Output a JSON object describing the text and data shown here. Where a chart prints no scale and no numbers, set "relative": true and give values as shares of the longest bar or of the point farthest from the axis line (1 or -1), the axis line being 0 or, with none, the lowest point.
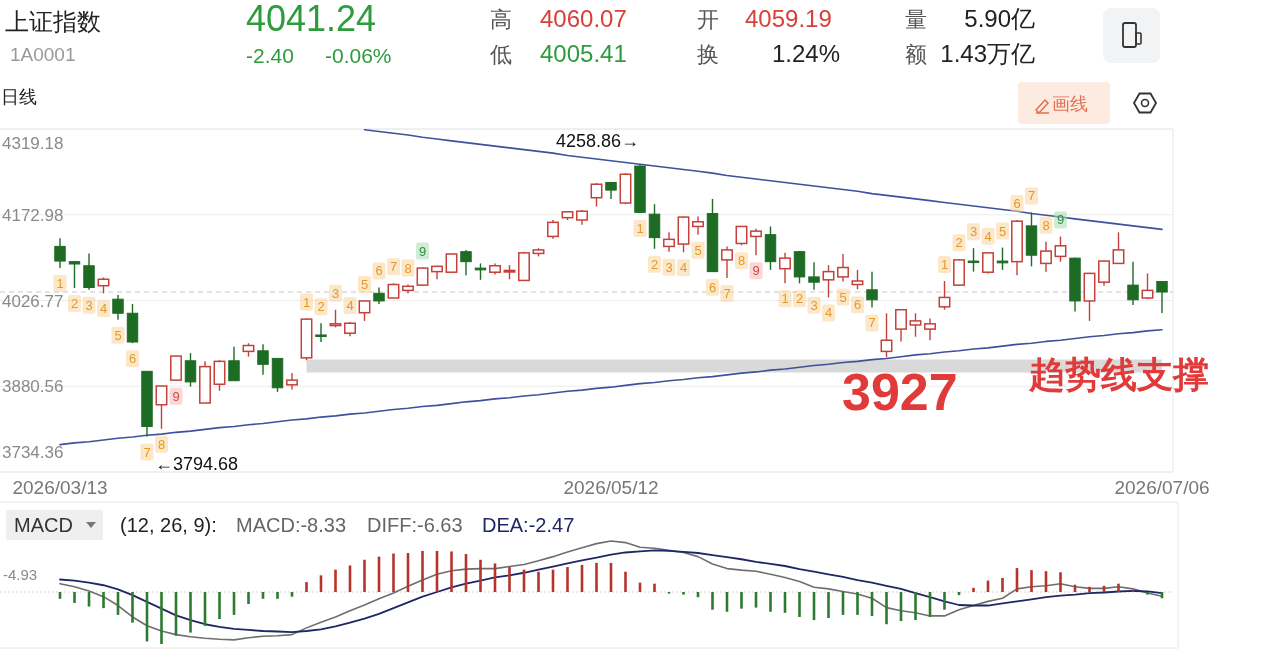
{
  "chart_data": [
    {
      "type": "candlestick",
      "title": "上证指数",
      "subtitle": "1A0001",
      "annotations": [
        "4041.24",
        "-2.40",
        "-0.06%",
        "高",
        "4060.07",
        "低",
        "4005.41",
        "开",
        "4059.19",
        "换",
        "1.24%",
        "量",
        "5.90亿",
        "额",
        "1.43万亿",
        "日线",
        "画线",
        "3927",
        {
          "text": "4258.86→",
          "y": 4258.86
        },
        "←3794.68"
      ],
      "categories": [
        "2026/03/13",
        null,
        null,
        null,
        null,
        null,
        null,
        null,
        null,
        null,
        null,
        null,
        null,
        null,
        null,
        null,
        null,
        null,
        null,
        null,
        null,
        null,
        null,
        null,
        null,
        null,
        null,
        null,
        null,
        null,
        null,
        null,
        null,
        null,
        null,
        null,
        null,
        null,
        "2026/05/12",
        null,
        null,
        null,
        null,
        null,
        null,
        null,
        null,
        null,
        null,
        null,
        null,
        null,
        null,
        null,
        null,
        null,
        null,
        null,
        null,
        null,
        null,
        null,
        null,
        null,
        null,
        null,
        null,
        null,
        null,
        null,
        null,
        null,
        null,
        null,
        null,
        null,
        "2026/07/06"
      ],
      "ylim": [
        3734.36,
        4319.18
      ],
      "yticks": [
        4319.18,
        4172.98,
        4026.77,
        3880.56,
        3734.36
      ],
      "grid": "y",
      "ref_lines": [
        {
          "axis": "y",
          "value": 4041.24,
          "color": "#c8c8c8",
          "line_style": "dashed"
        }
      ],
      "series": [
        {
          "type": "line",
          "color": "#d9d9d9",
          "values": [
            null,
            null,
            null,
            null,
            null,
            null,
            null,
            null,
            null,
            null,
            null,
            null,
            null,
            null,
            null,
            null,
            null,
            3915,
            3915,
            3915,
            3915,
            3915,
            3915,
            3915,
            3915,
            3915,
            3915,
            3915,
            3915,
            3915,
            3915,
            3915,
            3915,
            3915,
            3915,
            3915,
            3915,
            3915,
            3915,
            3915,
            3915,
            3915,
            3915,
            3915,
            3915,
            3915,
            3915,
            3915,
            3915,
            3915,
            3915,
            3915,
            3915,
            3915,
            3915,
            3915,
            3915,
            3915,
            3915,
            3915,
            3915,
            3915,
            3915,
            3915,
            3915,
            3915,
            3915,
            3915,
            3915,
            3915,
            3915,
            3915,
            3915,
            3915,
            3915,
            3915,
            3915
          ]
        },
        {
          "type": "line",
          "color": "#3d519c",
          "values": [
            null,
            null,
            null,
            null,
            null,
            null,
            null,
            null,
            null,
            null,
            null,
            null,
            null,
            null,
            null,
            null,
            null,
            null,
            null,
            null,
            null,
            4318,
            4315,
            4312,
            4309,
            4305,
            4302,
            4299,
            4296,
            4293,
            4290,
            4287,
            4284,
            4281,
            4278,
            4274,
            4271,
            4268,
            4265,
            4262,
            4259,
            4256,
            4253,
            4250,
            4247,
            4244,
            4240,
            4237,
            4234,
            4231,
            4228,
            4225,
            4222,
            4219,
            4216,
            4213,
            4209,
            4206,
            4203,
            4200,
            4197,
            4194,
            4191,
            4188,
            4185,
            4182,
            4179,
            4175,
            4172,
            4169,
            4166,
            4163,
            4160,
            4157,
            4154,
            4151,
            4148
          ]
        },
        {
          "type": "line",
          "name": "趋势线支撑",
          "color": "#3d519c",
          "values": [
            3781,
            3784,
            3786,
            3789,
            3792,
            3794,
            3797,
            3799,
            3802,
            3804,
            3807,
            3810,
            3812,
            3815,
            3817,
            3820,
            3823,
            3825,
            3828,
            3830,
            3833,
            3835,
            3838,
            3841,
            3843,
            3846,
            3848,
            3851,
            3854,
            3856,
            3859,
            3861,
            3864,
            3866,
            3869,
            3872,
            3874,
            3877,
            3879,
            3882,
            3885,
            3887,
            3890,
            3892,
            3895,
            3897,
            3900,
            3903,
            3905,
            3908,
            3910,
            3913,
            3916,
            3918,
            3921,
            3923,
            3926,
            3928,
            3931,
            3934,
            3936,
            3939,
            3941,
            3944,
            3946,
            3949,
            3952,
            3954,
            3957,
            3959,
            3962,
            3965,
            3967,
            3970,
            3972,
            3975,
            3977
          ]
        },
        {
          "ohlc": [
            [
              4119,
              4133,
              4082,
              4094
            ],
            [
              4093,
              4094,
              4048,
              4089
            ],
            [
              4086,
              4107,
              4045,
              4049
            ],
            [
              4052,
              4066,
              4039,
              4063
            ],
            [
              4029,
              4036,
              3994,
              4005
            ],
            [
              4005,
              4021,
              3954,
              3956
            ],
            [
              3906,
              3906,
              3794.68,
              3812
            ],
            [
              3849,
              3881,
              3808,
              3881
            ],
            [
              3891,
              3932,
              3890,
              3932
            ],
            [
              3924,
              3937,
              3880,
              3888
            ],
            [
              3852,
              3923,
              3852,
              3914
            ],
            [
              3884,
              3925,
              3873,
              3923
            ],
            [
              3924,
              3948,
              3890,
              3890
            ],
            [
              3940,
              3954,
              3931,
              3950
            ],
            [
              3941,
              3952,
              3900,
              3918
            ],
            [
              3928,
              3928,
              3871,
              3878
            ],
            [
              3883,
              3903,
              3875,
              3891
            ],
            [
              3929,
              3996,
              3925,
              3995
            ],
            [
              3968,
              3988,
              3956,
              3966
            ],
            [
              3984,
              4011,
              3981,
              3987
            ],
            [
              3971,
              3990,
              3966,
              3988
            ],
            [
              4006,
              4026,
              3992,
              4026
            ],
            [
              4039,
              4049,
              4021,
              4026
            ],
            [
              4031,
              4056,
              4031,
              4054
            ],
            [
              4044,
              4054,
              4039,
              4051
            ],
            [
              4053,
              4083,
              4052,
              4082
            ],
            [
              4076,
              4086,
              4063,
              4085
            ],
            [
              4075,
              4106,
              4075,
              4106
            ],
            [
              4110,
              4113,
              4070,
              4093
            ],
            [
              4082,
              4090,
              4062,
              4079
            ],
            [
              4075,
              4090,
              4071,
              4086
            ],
            [
              4076,
              4087,
              4063,
              4078
            ],
            [
              4061,
              4110,
              4061,
              4108
            ],
            [
              4107,
              4116,
              4102,
              4113
            ],
            [
              4136,
              4164,
              4132,
              4160
            ],
            [
              4168,
              4179,
              4164,
              4178
            ],
            [
              4164,
              4181,
              4156,
              4179
            ],
            [
              4202,
              4227,
              4187,
              4225
            ],
            [
              4228,
              4229,
              4200,
              4215
            ],
            [
              4193,
              4244,
              4191,
              4242
            ],
            [
              4256,
              4258.86,
              4176,
              4177
            ],
            [
              4174,
              4191,
              4115,
              4134
            ],
            [
              4119,
              4143,
              4110,
              4131
            ],
            [
              4123,
              4170,
              4109,
              4169
            ],
            [
              4153,
              4170,
              4139,
              4161
            ],
            [
              4175,
              4200,
              4076,
              4076
            ],
            [
              4096,
              4119,
              4065,
              4113
            ],
            [
              4124,
              4153,
              4121,
              4153
            ],
            [
              4136,
              4149,
              4104,
              4145
            ],
            [
              4139,
              4153,
              4079,
              4093
            ],
            [
              4081,
              4108,
              4056,
              4099
            ],
            [
              4110,
              4111,
              4056,
              4067
            ],
            [
              4067,
              4092,
              4045,
              4058
            ],
            [
              4062,
              4087,
              4032,
              4076
            ],
            [
              4067,
              4106,
              4059,
              4083
            ],
            [
              4054,
              4079,
              4046,
              4060
            ],
            [
              4045,
              4076,
              4015,
              4028
            ],
            [
              3940,
              4005,
              3930,
              3959
            ],
            [
              3978,
              4011,
              3957,
              4011
            ],
            [
              3985,
              4005,
              3965,
              3992
            ],
            [
              3978,
              3996,
              3959,
              3987
            ],
            [
              4016,
              4060,
              4011,
              4032
            ],
            [
              4053,
              4097,
              4052,
              4096
            ],
            [
              4094,
              4116,
              4076,
              4092
            ],
            [
              4075,
              4108,
              4073,
              4108
            ],
            [
              4094,
              4117,
              4079,
              4091
            ],
            [
              4093,
              4164,
              4070,
              4162
            ],
            [
              4154,
              4177,
              4085,
              4104
            ],
            [
              4090,
              4127,
              4076,
              4111
            ],
            [
              4102,
              4136,
              4093,
              4120
            ],
            [
              4099,
              4100,
              4008,
              4026
            ],
            [
              4026,
              4074,
              3992,
              4073
            ],
            [
              4058,
              4095,
              4052,
              4094
            ],
            [
              4090,
              4143,
              4089,
              4113
            ],
            [
              4053,
              4093,
              4019,
              4028
            ],
            [
              4031,
              4073,
              4029,
              4044
            ],
            [
              4059.19,
              4060.07,
              4005.41,
              4041.24
            ]
          ],
          "colors": [
            "#1e6b24",
            "#1e6b24",
            "#1e6b24",
            "#c4403a",
            "#1e6b24",
            "#1e6b24",
            "#1e6b24",
            "#c4403a",
            "#c4403a",
            "#1e6b24",
            "#c4403a",
            "#c4403a",
            "#1e6b24",
            "#c4403a",
            "#1e6b24",
            "#1e6b24",
            "#c4403a",
            "#c4403a",
            "#1e6b24",
            "#c4403a",
            "#c4403a",
            "#c4403a",
            "#1e6b24",
            "#c4403a",
            "#c4403a",
            "#c4403a",
            "#c4403a",
            "#c4403a",
            "#1e6b24",
            "#1e6b24",
            "#c4403a",
            "#c4403a",
            "#c4403a",
            "#c4403a",
            "#c4403a",
            "#c4403a",
            "#c4403a",
            "#c4403a",
            "#1e6b24",
            "#c4403a",
            "#1e6b24",
            "#1e6b24",
            "#c4403a",
            "#c4403a",
            "#c4403a",
            "#1e6b24",
            "#c4403a",
            "#c4403a",
            "#c4403a",
            "#1e6b24",
            "#c4403a",
            "#1e6b24",
            "#1e6b24",
            "#c4403a",
            "#c4403a",
            "#c4403a",
            "#1e6b24",
            "#c4403a",
            "#c4403a",
            "#c4403a",
            "#c4403a",
            "#c4403a",
            "#c4403a",
            "#1e6b24",
            "#c4403a",
            "#1e6b24",
            "#c4403a",
            "#1e6b24",
            "#c4403a",
            "#c4403a",
            "#1e6b24",
            "#c4403a",
            "#c4403a",
            "#c4403a",
            "#1e6b24",
            "#c4403a",
            "#1e6b24"
          ],
          "value_labels": [
            "1",
            "2",
            "3",
            "4",
            "5",
            "6",
            "7",
            "8",
            "9",
            null,
            null,
            null,
            null,
            null,
            null,
            null,
            null,
            "1",
            "2",
            "3",
            "4",
            "5",
            "6",
            "7",
            "8",
            "9",
            null,
            null,
            null,
            null,
            null,
            null,
            null,
            null,
            null,
            null,
            null,
            null,
            null,
            null,
            "1",
            "2",
            "3",
            "4",
            "5",
            "6",
            "7",
            "8",
            "9",
            null,
            "1",
            "2",
            "3",
            "4",
            "5",
            "6",
            "7",
            null,
            null,
            null,
            null,
            "1",
            "2",
            "3",
            "4",
            "5",
            "6",
            "7",
            "8",
            "9",
            null,
            null,
            null,
            null,
            null,
            null,
            null
          ]
        }
      ]
    },
    {
      "type": "bar",
      "relative": true,
      "categories": [
        null,
        null,
        null,
        null,
        null,
        null,
        null,
        null,
        null,
        null,
        null,
        null,
        null,
        null,
        null,
        null,
        null,
        null,
        null,
        null,
        null,
        null,
        null,
        null,
        null,
        null,
        null,
        null,
        null,
        null,
        null,
        null,
        null,
        null,
        null,
        null,
        null,
        null,
        null,
        null,
        null,
        null,
        null,
        null,
        null,
        null,
        null,
        null,
        null,
        null,
        null,
        null,
        null,
        null,
        null,
        null,
        null,
        null,
        null,
        null,
        null,
        null,
        null,
        null,
        null,
        null,
        null,
        null,
        null,
        null,
        null,
        null,
        null,
        null,
        null,
        null,
        null
      ],
      "annotations": [
        "MACD",
        "(12, 26, 9):",
        "MACD:-8.33",
        "DIFF:-6.63",
        "DEA:-2.47",
        "-4.93"
      ],
      "ref_lines": [
        {
          "axis": "y",
          "value": 0,
          "color": "#e2cfcf",
          "line_style": "dotted"
        }
      ],
      "series": [
        {
          "values": [
            -0.13,
            -0.21,
            -0.28,
            -0.31,
            -0.44,
            -0.59,
            -0.95,
            -1.0,
            -0.84,
            -0.78,
            -0.65,
            -0.52,
            -0.44,
            -0.23,
            -0.13,
            -0.13,
            -0.09,
            0.19,
            0.32,
            0.43,
            0.51,
            0.62,
            0.68,
            0.74,
            0.75,
            0.79,
            0.79,
            0.78,
            0.73,
            0.62,
            0.55,
            0.48,
            0.43,
            0.39,
            0.43,
            0.48,
            0.52,
            0.56,
            0.56,
            0.39,
            0.18,
            0.16,
            -0.03,
            -0.05,
            -0.1,
            -0.34,
            -0.38,
            -0.32,
            -0.3,
            -0.38,
            -0.4,
            -0.48,
            -0.54,
            -0.5,
            -0.44,
            -0.44,
            -0.46,
            -0.62,
            -0.56,
            -0.54,
            -0.48,
            -0.34,
            -0.06,
            0.08,
            0.22,
            0.27,
            0.46,
            0.42,
            0.4,
            0.38,
            0.14,
            0.1,
            0.12,
            0.16,
            0.03,
            -0.05,
            -0.12
          ],
          "colors": [
            "#2e7a31",
            "#2e7a31",
            "#2e7a31",
            "#2e7a31",
            "#2e7a31",
            "#2e7a31",
            "#2e7a31",
            "#2e7a31",
            "#2e7a31",
            "#2e7a31",
            "#2e7a31",
            "#2e7a31",
            "#2e7a31",
            "#2e7a31",
            "#2e7a31",
            "#2e7a31",
            "#2e7a31",
            "#b5352d",
            "#b5352d",
            "#b5352d",
            "#b5352d",
            "#b5352d",
            "#b5352d",
            "#b5352d",
            "#b5352d",
            "#b5352d",
            "#b5352d",
            "#b5352d",
            "#b5352d",
            "#b5352d",
            "#b5352d",
            "#b5352d",
            "#b5352d",
            "#b5352d",
            "#b5352d",
            "#b5352d",
            "#b5352d",
            "#b5352d",
            "#b5352d",
            "#b5352d",
            "#b5352d",
            "#b5352d",
            "#2e7a31",
            "#2e7a31",
            "#2e7a31",
            "#2e7a31",
            "#2e7a31",
            "#2e7a31",
            "#2e7a31",
            "#2e7a31",
            "#2e7a31",
            "#2e7a31",
            "#2e7a31",
            "#2e7a31",
            "#2e7a31",
            "#2e7a31",
            "#2e7a31",
            "#2e7a31",
            "#2e7a31",
            "#2e7a31",
            "#2e7a31",
            "#2e7a31",
            "#2e7a31",
            "#b5352d",
            "#b5352d",
            "#b5352d",
            "#b5352d",
            "#b5352d",
            "#b5352d",
            "#b5352d",
            "#b5352d",
            "#b5352d",
            "#b5352d",
            "#b5352d",
            "#b5352d",
            "#2e7a31",
            "#2e7a31"
          ]
        },
        {
          "type": "line",
          "color": "#6e6e6e",
          "values": [
            0.16,
            0.1,
            0.02,
            -0.09,
            -0.26,
            -0.48,
            -0.65,
            -0.75,
            -0.82,
            -0.86,
            -0.89,
            -0.91,
            -0.92,
            -0.88,
            -0.85,
            -0.84,
            -0.82,
            -0.69,
            -0.58,
            -0.48,
            -0.36,
            -0.25,
            -0.13,
            -0.02,
            0.11,
            0.23,
            0.34,
            0.41,
            0.44,
            0.45,
            0.45,
            0.49,
            0.53,
            0.6,
            0.68,
            0.77,
            0.85,
            0.93,
            0.98,
            0.95,
            0.86,
            0.84,
            0.8,
            0.76,
            0.68,
            0.54,
            0.45,
            0.42,
            0.4,
            0.34,
            0.28,
            0.2,
            0.09,
            0.06,
            0.01,
            -0.04,
            -0.12,
            -0.3,
            -0.36,
            -0.4,
            -0.46,
            -0.46,
            -0.34,
            -0.26,
            -0.18,
            -0.12,
            0.06,
            0.1,
            0.12,
            0.16,
            0.1,
            0.07,
            0.07,
            0.1,
            0.06,
            -0.02,
            -0.08
          ]
        },
        {
          "type": "line",
          "color": "#1f2766",
          "values": [
            0.24,
            0.22,
            0.18,
            0.13,
            0.05,
            -0.06,
            -0.19,
            -0.32,
            -0.45,
            -0.54,
            -0.62,
            -0.67,
            -0.71,
            -0.73,
            -0.75,
            -0.76,
            -0.77,
            -0.75,
            -0.72,
            -0.66,
            -0.59,
            -0.51,
            -0.42,
            -0.31,
            -0.2,
            -0.09,
            0.0,
            0.09,
            0.16,
            0.22,
            0.28,
            0.32,
            0.37,
            0.43,
            0.49,
            0.55,
            0.61,
            0.66,
            0.72,
            0.76,
            0.78,
            0.8,
            0.79,
            0.77,
            0.75,
            0.71,
            0.67,
            0.63,
            0.58,
            0.54,
            0.5,
            0.44,
            0.39,
            0.34,
            0.29,
            0.23,
            0.18,
            0.12,
            0.06,
            -0.02,
            -0.1,
            -0.18,
            -0.25,
            -0.26,
            -0.26,
            -0.22,
            -0.18,
            -0.14,
            -0.1,
            -0.07,
            -0.05,
            -0.02,
            -0.01,
            0.01,
            0.02,
            0.01,
            -0.02
          ]
        }
      ]
    }
  ]
}
